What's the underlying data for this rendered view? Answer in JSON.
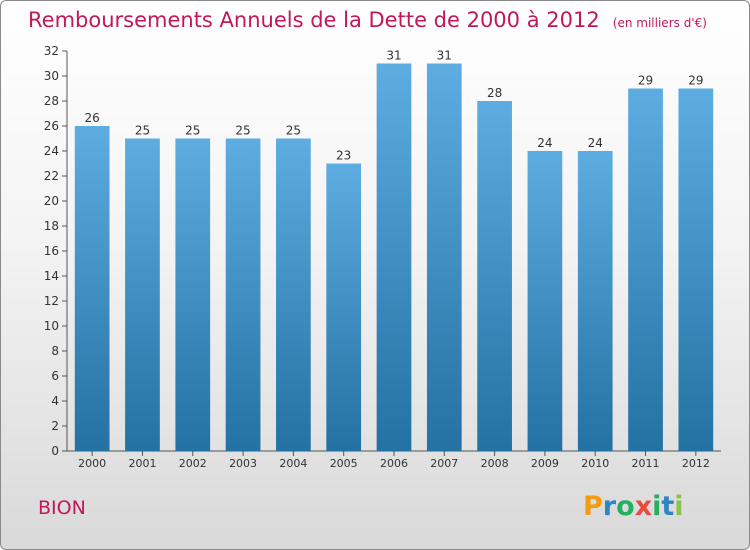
{
  "title": "Remboursements Annuels de la Dette de 2000 à 2012",
  "subtitle": "(en milliers d'€)",
  "commune": "BION",
  "logo": {
    "letters": [
      "P",
      "r",
      "o",
      "x",
      "i",
      "t",
      "i"
    ],
    "colors": [
      "#f39c12",
      "#2e86c1",
      "#27ae60",
      "#e74c3c",
      "#27ae60",
      "#2e86c1",
      "#8bc34a"
    ]
  },
  "colors": {
    "bar_top": "#5dade2",
    "bar_bottom": "#2471a3",
    "title": "#c2185b"
  },
  "chart_data": {
    "type": "bar",
    "title": "Remboursements Annuels de la Dette de 2000 à 2012",
    "subtitle": "(en milliers d'€)",
    "categories": [
      "2000",
      "2001",
      "2002",
      "2003",
      "2004",
      "2005",
      "2006",
      "2007",
      "2008",
      "2009",
      "2010",
      "2011",
      "2012"
    ],
    "values": [
      26,
      25,
      25,
      25,
      25,
      23,
      31,
      31,
      28,
      24,
      24,
      29,
      29
    ],
    "ylim": [
      0,
      32
    ],
    "yticks": [
      0,
      2,
      4,
      6,
      8,
      10,
      12,
      14,
      16,
      18,
      20,
      22,
      24,
      26,
      28,
      30,
      32
    ],
    "grid": false,
    "legend": "none",
    "data_labels": true
  }
}
